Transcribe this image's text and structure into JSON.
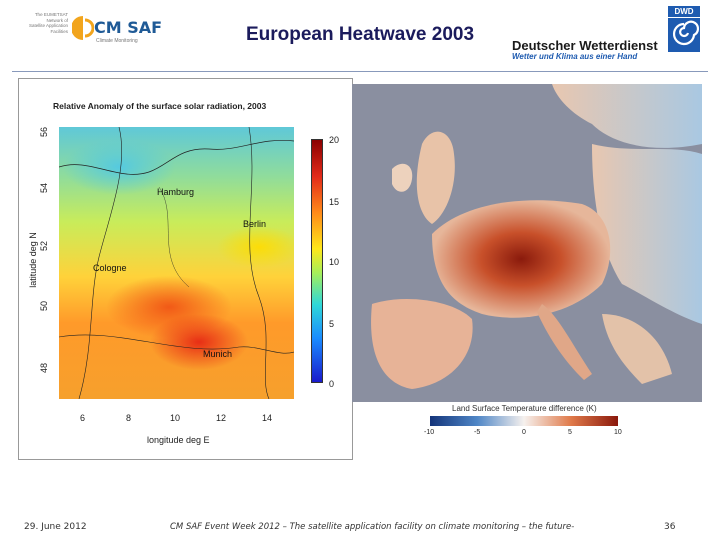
{
  "header": {
    "title": "European Heatwave 2003",
    "cmsaf": {
      "small_lines": [
        "The EUMETSAT",
        "Network of",
        "Satellite Application",
        "Facilities"
      ],
      "brand": "CM SAF",
      "tagline": "Climate Monitoring"
    },
    "dwd": {
      "name": "Deutscher Wetterdienst",
      "slogan": "Wetter und Klima aus einer Hand",
      "badge": "DWD"
    }
  },
  "left_map": {
    "title": "Relative Anomaly of the surface solar radiation, 2003",
    "y_axis_label": "latitude deg N",
    "x_axis_label": "longitude deg E",
    "y_ticks": [
      "56",
      "54",
      "52",
      "50",
      "48"
    ],
    "x_ticks": [
      "6",
      "8",
      "10",
      "12",
      "14"
    ],
    "colorbar_ticks": [
      "20",
      "15",
      "10",
      "5",
      "0"
    ],
    "cities": [
      "Hamburg",
      "Berlin",
      "Cologne",
      "Munich"
    ]
  },
  "right_map": {
    "legend_title": "Land Surface Temperature difference (K)",
    "legend_ticks": [
      "-10",
      "-5",
      "0",
      "5",
      "10"
    ]
  },
  "footer": {
    "date": "29. June 2012",
    "event": "CM SAF Event Week 2012 – The satellite application facility on climate monitoring – the future-",
    "page": "36"
  }
}
